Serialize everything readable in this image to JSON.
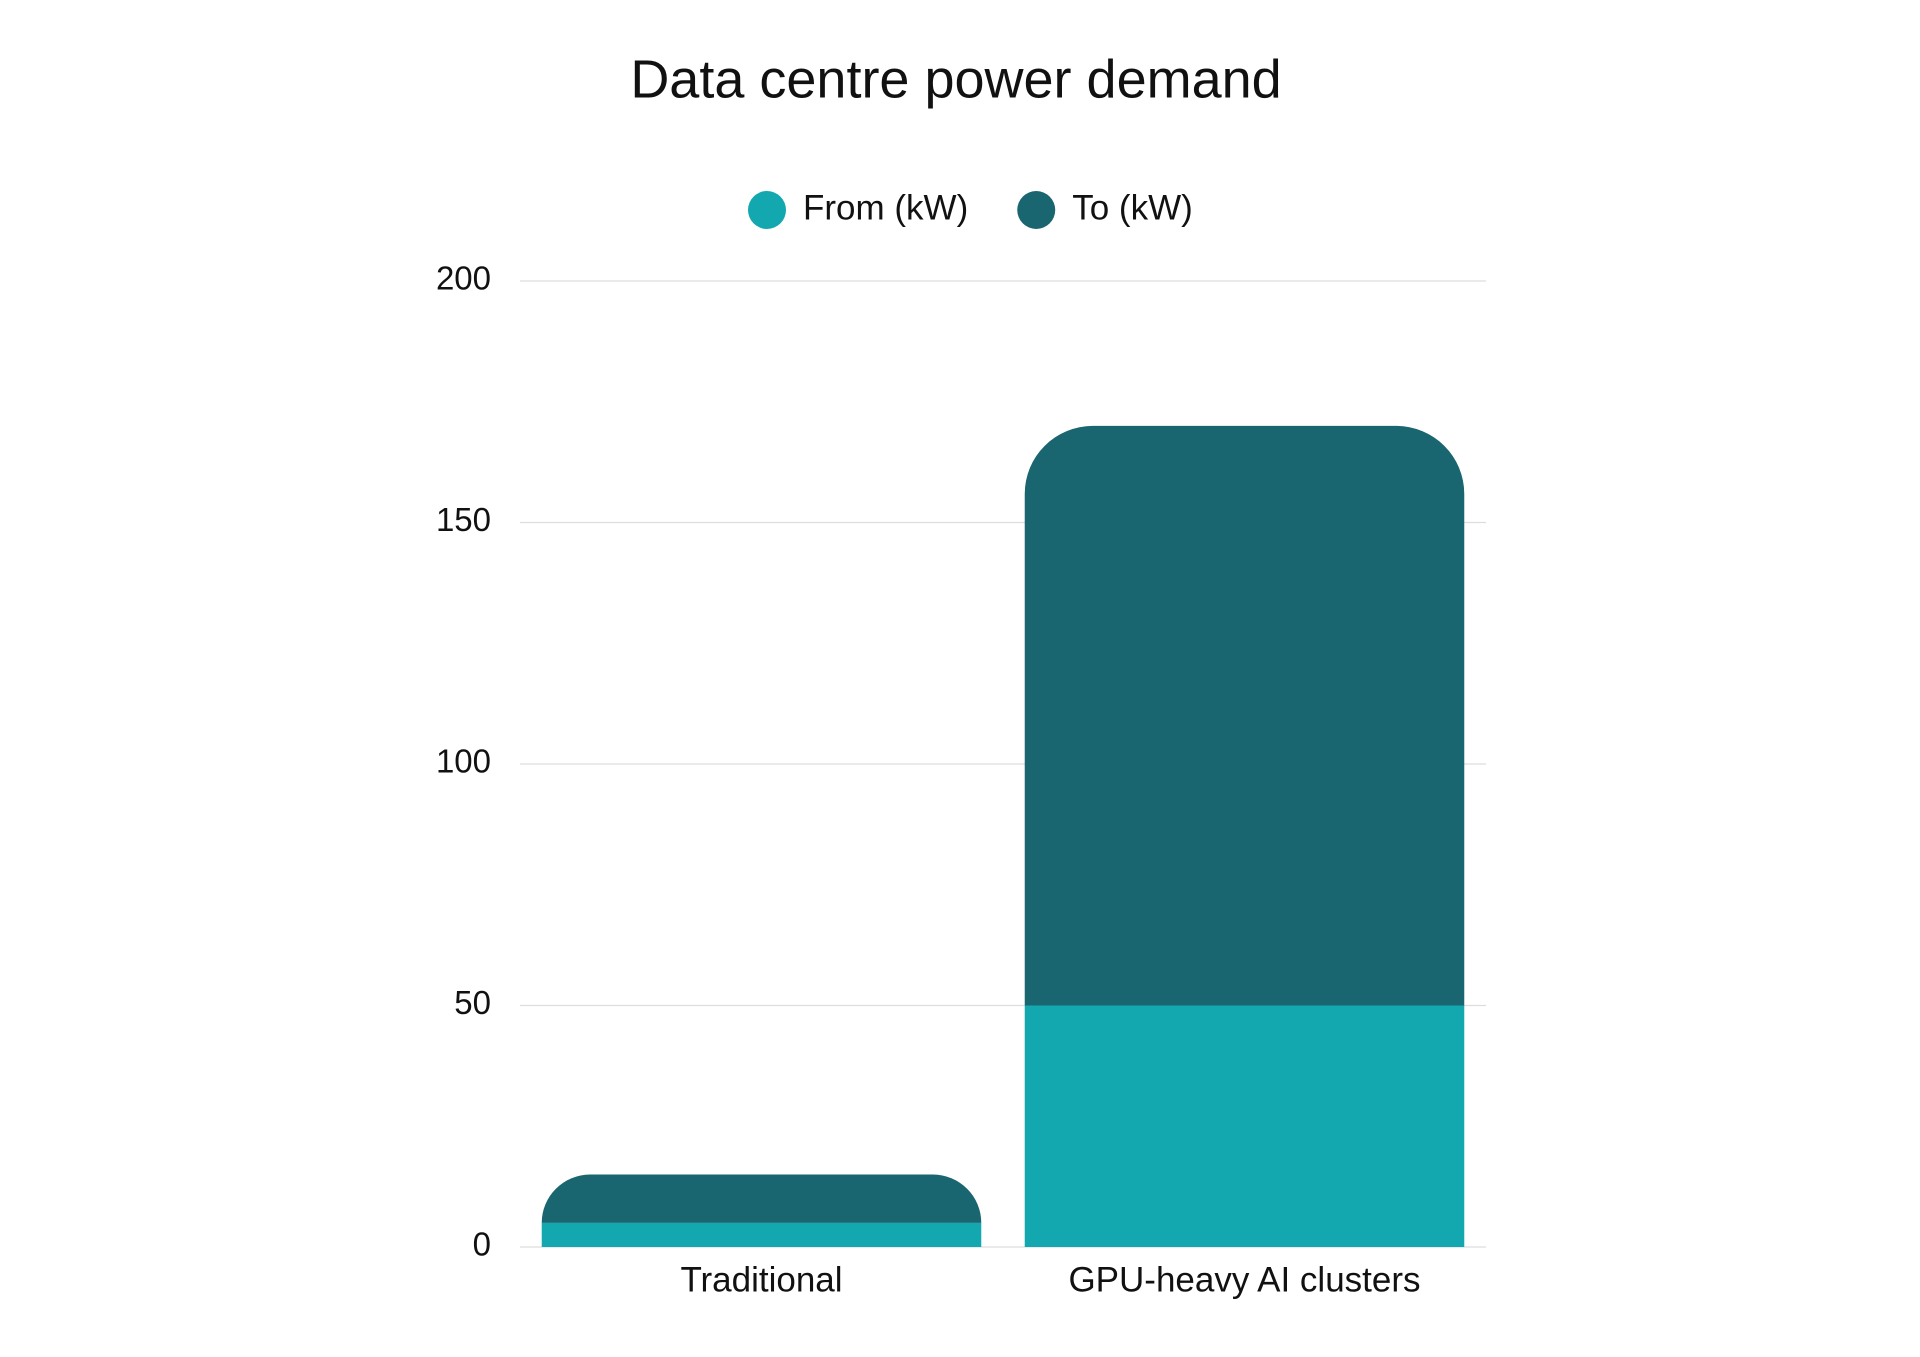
{
  "chart_data": {
    "type": "stacked_bar",
    "title": "Data centre power demand",
    "categories": [
      "Traditional",
      "GPU-heavy AI clusters"
    ],
    "series": [
      {
        "name": "From (kW)",
        "color": "#13a8b0",
        "values": [
          5,
          50
        ]
      },
      {
        "name": "To (kW)",
        "color": "#1a6670",
        "values": [
          10,
          120
        ]
      }
    ],
    "ylim": [
      0,
      200
    ],
    "yticks": [
      0,
      50,
      100,
      150,
      200
    ],
    "grid": true,
    "legend": "top"
  }
}
